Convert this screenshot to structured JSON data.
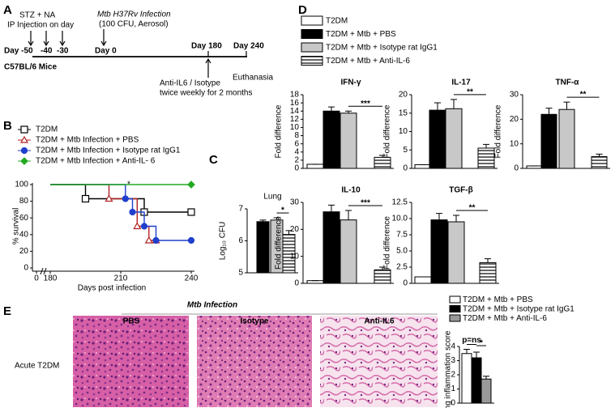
{
  "panel_labels": [
    "A",
    "B",
    "C",
    "D",
    "E"
  ],
  "timeline": {
    "treatment": "STZ + NA",
    "treatment_route": "IP Injection on day",
    "infection": "Mtb H37Rv Infection",
    "infection_dose": "(100 CFU, Aerosol)",
    "days": [
      "Day -50",
      "-40",
      "-30",
      "Day 0",
      "Day 180",
      "Day 240"
    ],
    "strain": "C57BL/6 Mice",
    "intervention": "Anti-IL6 / Isotype",
    "intervention_schedule": "twice weekly for 2 months",
    "endpoint": "Euthanasia"
  },
  "panel_d_legend": [
    {
      "name": "T2DM",
      "color": "#ffffff",
      "hatched": false
    },
    {
      "name": "T2DM + Mtb + PBS",
      "color": "#000000",
      "hatched": false
    },
    {
      "name": "T2DM + Mtb + Isotype rat IgG1",
      "color": "#c8c8c8",
      "hatched": false
    },
    {
      "name": "T2DM + Mtb + Anti-IL-6",
      "color": "#ffffff",
      "hatched": true
    }
  ],
  "panel_e": {
    "heading": "Mtb Infection",
    "columns": [
      "PBS",
      "Isotype",
      "Anti-IL6"
    ],
    "row": "Acute T2DM"
  },
  "chart_data": [
    {
      "type": "step",
      "xlabel": "Days post infection",
      "ylabel": "% survival",
      "xlim": [
        0,
        240
      ],
      "ylim": [
        0,
        100
      ],
      "xticks": [
        0,
        180,
        210,
        240
      ],
      "yticks": [
        0,
        20,
        40,
        60,
        80,
        100
      ],
      "annotation": "*",
      "series": [
        {
          "name": "T2DM",
          "color": "#000000",
          "marker": "square",
          "filled": false,
          "x": [
            180,
            195,
            220,
            240
          ],
          "values": [
            100,
            83,
            67,
            67
          ]
        },
        {
          "name": "T2DM + Mtb Infection + PBS",
          "color": "#b22222",
          "marker": "triangle",
          "filled": false,
          "x": [
            180,
            205,
            217,
            222,
            225
          ],
          "values": [
            100,
            83,
            50,
            33,
            33
          ]
        },
        {
          "name": "T2DM + Mtb Infection + Isotype rat IgG1",
          "color": "#1f3fcc",
          "marker": "circle",
          "filled": true,
          "x": [
            180,
            212,
            215,
            220,
            225,
            240
          ],
          "values": [
            100,
            83,
            67,
            50,
            33,
            33
          ]
        },
        {
          "name": "T2DM + Mtb Infection + Anti-IL- 6",
          "color": "#22aa22",
          "marker": "diamond",
          "filled": true,
          "x": [
            180,
            240
          ],
          "values": [
            100,
            100
          ]
        }
      ]
    },
    {
      "type": "bar",
      "title": "Lung",
      "ylabel": "Log₁₀ CFU",
      "ylim": [
        5,
        7
      ],
      "yticks": [
        5,
        6,
        7
      ],
      "values": [
        6.6,
        6.65,
        6.2
      ],
      "errors": [
        0.05,
        0.07,
        0.12
      ],
      "colors": [
        "#000000",
        "#c8c8c8",
        "#ffffff"
      ],
      "hatched": [
        false,
        false,
        true
      ],
      "significance": [
        {
          "text": "*",
          "between": [
            1,
            2
          ]
        }
      ]
    },
    {
      "type": "bar",
      "title": "IFN-γ",
      "ylabel": "Fold difference",
      "ylim": [
        0,
        18
      ],
      "yticks": [
        0,
        2,
        4,
        6,
        8,
        10,
        12,
        14,
        16,
        18
      ],
      "values": [
        1,
        14,
        13.5,
        2.7
      ],
      "errors": [
        0,
        1,
        0.5,
        0.5
      ],
      "colors": [
        "#ffffff",
        "#000000",
        "#c8c8c8",
        "#ffffff"
      ],
      "hatched": [
        false,
        false,
        false,
        true
      ],
      "significance": [
        {
          "text": "***",
          "between": [
            2,
            3
          ]
        }
      ]
    },
    {
      "type": "bar",
      "title": "IL-17",
      "ylabel": "Fold difference",
      "ylim": [
        0,
        20
      ],
      "yticks": [
        0,
        5,
        10,
        15,
        20
      ],
      "values": [
        1,
        15.8,
        16.2,
        5.5
      ],
      "errors": [
        0,
        2,
        2.5,
        1
      ],
      "colors": [
        "#ffffff",
        "#000000",
        "#c8c8c8",
        "#ffffff"
      ],
      "hatched": [
        false,
        false,
        false,
        true
      ],
      "significance": [
        {
          "text": "**",
          "between": [
            2,
            3
          ]
        }
      ]
    },
    {
      "type": "bar",
      "title": "TNF-α",
      "ylabel": "Fold difference",
      "ylim": [
        0,
        30
      ],
      "yticks": [
        0,
        10,
        20,
        30
      ],
      "values": [
        1,
        22,
        24,
        4.8
      ],
      "errors": [
        0,
        2.5,
        3,
        1
      ],
      "colors": [
        "#ffffff",
        "#000000",
        "#c8c8c8",
        "#ffffff"
      ],
      "hatched": [
        false,
        false,
        false,
        true
      ],
      "significance": [
        {
          "text": "**",
          "between": [
            2,
            3
          ]
        }
      ]
    },
    {
      "type": "bar",
      "title": "IL-10",
      "ylabel": "Fold difference",
      "ylim": [
        0,
        30
      ],
      "yticks": [
        0,
        10,
        20,
        30
      ],
      "values": [
        1,
        26.5,
        23.5,
        5
      ],
      "errors": [
        0,
        2.5,
        3.5,
        1
      ],
      "colors": [
        "#ffffff",
        "#000000",
        "#c8c8c8",
        "#ffffff"
      ],
      "hatched": [
        false,
        false,
        false,
        true
      ],
      "significance": [
        {
          "text": "***",
          "between": [
            2,
            3
          ]
        }
      ]
    },
    {
      "type": "bar",
      "title": "TGF-β",
      "ylabel": "Fold difference",
      "ylim": [
        0,
        12.5
      ],
      "yticks": [
        0,
        2.5,
        {
          "value": 5,
          "label": "5.0"
        },
        7.5,
        {
          "value": 10,
          "label": "10.0"
        },
        12.5
      ],
      "values": [
        1,
        9.8,
        9.5,
        3.2
      ],
      "errors": [
        0,
        1,
        1,
        0.6
      ],
      "colors": [
        "#ffffff",
        "#000000",
        "#c8c8c8",
        "#ffffff"
      ],
      "hatched": [
        false,
        false,
        false,
        true
      ],
      "significance": [
        {
          "text": "**",
          "between": [
            2,
            3
          ]
        }
      ]
    },
    {
      "type": "bar",
      "ylabel": "Lung inflammation score",
      "ylim": [
        0,
        4
      ],
      "yticks": [
        0,
        1,
        2,
        3,
        4
      ],
      "values": [
        3.5,
        3.2,
        1.7
      ],
      "errors": [
        0.3,
        0.4,
        0.2
      ],
      "colors": [
        "#ffffff",
        "#000000",
        "#999999"
      ],
      "hatched": [
        false,
        false,
        false
      ],
      "legend": [
        "T2DM + Mtb + PBS",
        "T2DM + Mtb + Isotype rat IgG1",
        "T2DM + Mtb + Anti-IL-6"
      ],
      "significance": [
        {
          "text": "p=ns",
          "between": [
            0,
            1
          ]
        },
        {
          "text": "*",
          "between": [
            1,
            2
          ]
        }
      ]
    }
  ]
}
